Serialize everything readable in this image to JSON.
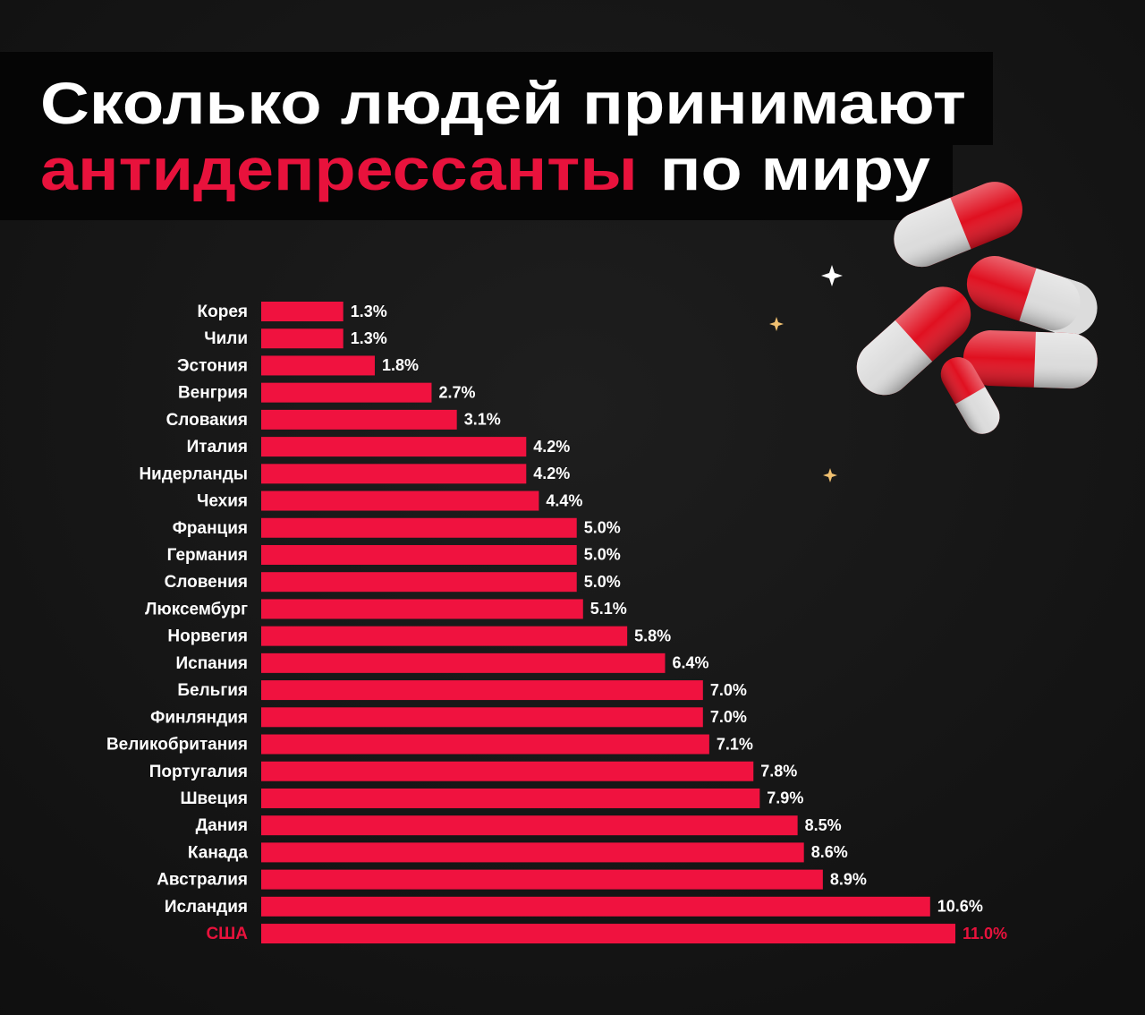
{
  "chart_data": {
    "type": "bar",
    "orientation": "horizontal",
    "title": "Сколько людей принимают",
    "title_line2_highlight": "антидепрессанты",
    "title_line2_rest": "по миру",
    "title_highlight_color": "#e8123c",
    "color": "#f0123f",
    "categories": [
      "Корея",
      "Чили",
      "Эстония",
      "Венгрия",
      "Словакия",
      "Италия",
      "Нидерланды",
      "Чехия",
      "Франция",
      "Германия",
      "Словения",
      "Люксембург",
      "Норвегия",
      "Испания",
      "Бельгия",
      "Финляндия",
      "Великобритания",
      "Португалия",
      "Швеция",
      "Дания",
      "Канада",
      "Австралия",
      "Исландия",
      "США"
    ],
    "values": [
      1.3,
      1.3,
      1.8,
      2.7,
      3.1,
      4.2,
      4.2,
      4.4,
      5.0,
      5.0,
      5.0,
      5.1,
      5.8,
      6.4,
      7.0,
      7.0,
      7.1,
      7.8,
      7.9,
      8.5,
      8.6,
      8.9,
      10.6,
      11.0
    ],
    "value_labels": [
      "1.3%",
      "1.3%",
      "1.8%",
      "2.7%",
      "3.1%",
      "4.2%",
      "4.2%",
      "4.4%",
      "5.0%",
      "5.0%",
      "5.0%",
      "5.1%",
      "5.8%",
      "6.4%",
      "7.0%",
      "7.0%",
      "7.1%",
      "7.8%",
      "7.9%",
      "8.5%",
      "8.6%",
      "8.9%",
      "10.6%",
      "11.0%"
    ],
    "label_colors": [
      "#ffffff",
      "#ffffff",
      "#ffffff",
      "#ffffff",
      "#ffffff",
      "#ffffff",
      "#ffffff",
      "#ffffff",
      "#ffffff",
      "#ffffff",
      "#ffffff",
      "#ffffff",
      "#ffffff",
      "#ffffff",
      "#ffffff",
      "#ffffff",
      "#ffffff",
      "#ffffff",
      "#ffffff",
      "#ffffff",
      "#ffffff",
      "#ffffff",
      "#ffffff",
      "#e8123c"
    ]
  }
}
